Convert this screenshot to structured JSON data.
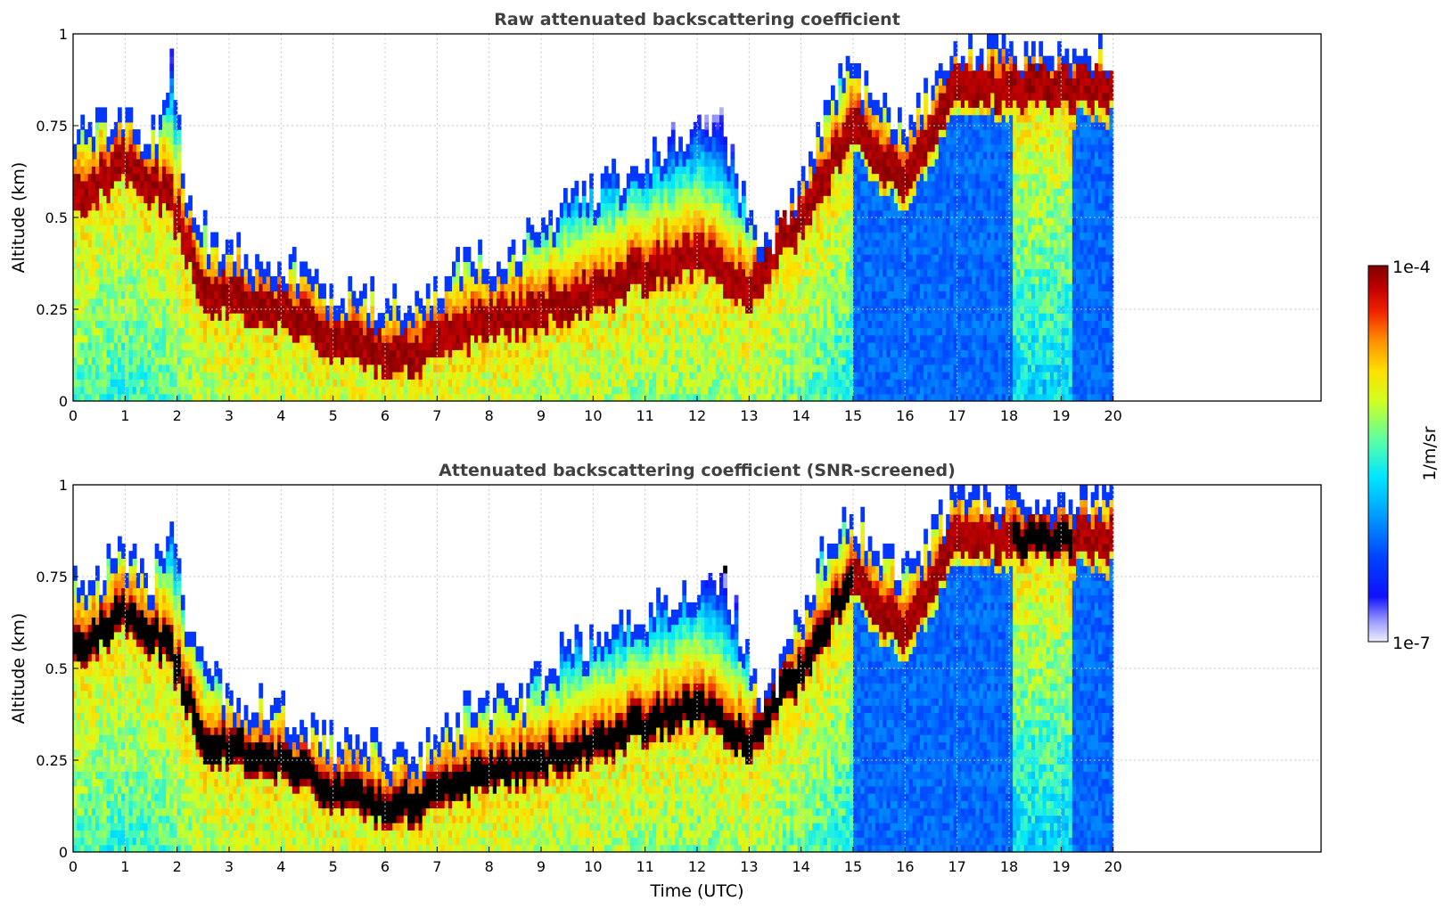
{
  "chart_data": [
    {
      "type": "heatmap",
      "title": "Raw attenuated backscattering coefficient",
      "xlabel": "",
      "ylabel": "Altitude (km)",
      "xlim": [
        0,
        24
      ],
      "ylim": [
        0,
        1
      ],
      "xticks": [
        "0",
        "1",
        "2",
        "3",
        "4",
        "5",
        "6",
        "7",
        "8",
        "9",
        "10",
        "11",
        "12",
        "13",
        "14",
        "15",
        "16",
        "17",
        "18",
        "19",
        "20"
      ],
      "yticks": [
        "0",
        "0.25",
        "0.5",
        "0.75",
        "1"
      ],
      "grid": true,
      "data_extent_hours": [
        0,
        20
      ],
      "layer_top_km": [
        {
          "x": 0,
          "y": 0.74
        },
        {
          "x": 0.5,
          "y": 0.75
        },
        {
          "x": 1,
          "y": 0.78
        },
        {
          "x": 1.5,
          "y": 0.7
        },
        {
          "x": 1.9,
          "y": 0.9
        },
        {
          "x": 2.2,
          "y": 0.55
        },
        {
          "x": 2.6,
          "y": 0.45
        },
        {
          "x": 3,
          "y": 0.42
        },
        {
          "x": 4,
          "y": 0.38
        },
        {
          "x": 5,
          "y": 0.3
        },
        {
          "x": 6,
          "y": 0.27
        },
        {
          "x": 6.8,
          "y": 0.27
        },
        {
          "x": 7.5,
          "y": 0.38
        },
        {
          "x": 8.5,
          "y": 0.4
        },
        {
          "x": 9.5,
          "y": 0.55
        },
        {
          "x": 10.5,
          "y": 0.6
        },
        {
          "x": 11.5,
          "y": 0.7
        },
        {
          "x": 12.5,
          "y": 0.75
        },
        {
          "x": 13.3,
          "y": 0.4
        },
        {
          "x": 14,
          "y": 0.6
        },
        {
          "x": 14.8,
          "y": 0.9
        },
        {
          "x": 16,
          "y": 0.75
        },
        {
          "x": 17,
          "y": 0.95
        },
        {
          "x": 18,
          "y": 0.95
        },
        {
          "x": 19,
          "y": 0.95
        },
        {
          "x": 20,
          "y": 0.95
        }
      ],
      "peak_layer_km": [
        {
          "x": 0,
          "y": 0.55
        },
        {
          "x": 1,
          "y": 0.65
        },
        {
          "x": 1.9,
          "y": 0.55
        },
        {
          "x": 2.5,
          "y": 0.3
        },
        {
          "x": 4,
          "y": 0.25
        },
        {
          "x": 5,
          "y": 0.17
        },
        {
          "x": 6,
          "y": 0.13
        },
        {
          "x": 7,
          "y": 0.15
        },
        {
          "x": 8,
          "y": 0.22
        },
        {
          "x": 9,
          "y": 0.25
        },
        {
          "x": 10,
          "y": 0.3
        },
        {
          "x": 11,
          "y": 0.35
        },
        {
          "x": 12,
          "y": 0.4
        },
        {
          "x": 13,
          "y": 0.3
        },
        {
          "x": 14,
          "y": 0.5
        },
        {
          "x": 15,
          "y": 0.75
        },
        {
          "x": 16,
          "y": 0.6
        },
        {
          "x": 17,
          "y": 0.87
        },
        {
          "x": 18,
          "y": 0.85
        },
        {
          "x": 19,
          "y": 0.85
        }
      ]
    },
    {
      "type": "heatmap",
      "title": "Attenuated backscattering coefficient (SNR-screened)",
      "xlabel": "Time (UTC)",
      "ylabel": "Altitude (km)",
      "xlim": [
        0,
        24
      ],
      "ylim": [
        0,
        1
      ],
      "xticks": [
        "0",
        "1",
        "2",
        "3",
        "4",
        "5",
        "6",
        "7",
        "8",
        "9",
        "10",
        "11",
        "12",
        "13",
        "14",
        "15",
        "16",
        "17",
        "18",
        "19",
        "20"
      ],
      "yticks": [
        "0",
        "0.25",
        "0.5",
        "0.75",
        "1"
      ],
      "grid": true,
      "data_extent_hours": [
        0,
        20
      ],
      "layer_top_km": [
        {
          "x": 0,
          "y": 0.74
        },
        {
          "x": 0.5,
          "y": 0.76
        },
        {
          "x": 1,
          "y": 0.82
        },
        {
          "x": 1.5,
          "y": 0.72
        },
        {
          "x": 1.9,
          "y": 0.93
        },
        {
          "x": 2.2,
          "y": 0.6
        },
        {
          "x": 2.6,
          "y": 0.48
        },
        {
          "x": 3,
          "y": 0.43
        },
        {
          "x": 4,
          "y": 0.38
        },
        {
          "x": 5,
          "y": 0.3
        },
        {
          "x": 6,
          "y": 0.28
        },
        {
          "x": 6.8,
          "y": 0.28
        },
        {
          "x": 7.5,
          "y": 0.38
        },
        {
          "x": 8.5,
          "y": 0.42
        },
        {
          "x": 9.5,
          "y": 0.55
        },
        {
          "x": 10.5,
          "y": 0.6
        },
        {
          "x": 11.5,
          "y": 0.7
        },
        {
          "x": 12.5,
          "y": 0.75
        },
        {
          "x": 13.3,
          "y": 0.4
        },
        {
          "x": 14,
          "y": 0.65
        },
        {
          "x": 14.8,
          "y": 0.95
        },
        {
          "x": 16,
          "y": 0.75
        },
        {
          "x": 17,
          "y": 0.97
        },
        {
          "x": 18,
          "y": 0.97
        },
        {
          "x": 19,
          "y": 0.97
        },
        {
          "x": 20,
          "y": 0.97
        }
      ],
      "peak_layer_km": [
        {
          "x": 0,
          "y": 0.55
        },
        {
          "x": 1,
          "y": 0.65
        },
        {
          "x": 1.9,
          "y": 0.55
        },
        {
          "x": 2.5,
          "y": 0.3
        },
        {
          "x": 4,
          "y": 0.25
        },
        {
          "x": 5,
          "y": 0.17
        },
        {
          "x": 6,
          "y": 0.13
        },
        {
          "x": 7,
          "y": 0.15
        },
        {
          "x": 8,
          "y": 0.22
        },
        {
          "x": 9,
          "y": 0.25
        },
        {
          "x": 10,
          "y": 0.3
        },
        {
          "x": 11,
          "y": 0.35
        },
        {
          "x": 12,
          "y": 0.4
        },
        {
          "x": 13,
          "y": 0.3
        },
        {
          "x": 14,
          "y": 0.5
        },
        {
          "x": 15,
          "y": 0.75
        },
        {
          "x": 16,
          "y": 0.6
        },
        {
          "x": 17,
          "y": 0.87
        },
        {
          "x": 18,
          "y": 0.85
        },
        {
          "x": 19,
          "y": 0.85
        }
      ]
    }
  ],
  "colorbar": {
    "label": "1/m/sr",
    "max_label": "1e-4",
    "min_label": "1e-7",
    "scale": "log",
    "colors": [
      "#f0f0ff",
      "#c8c8ff",
      "#9090ff",
      "#5050ff",
      "#0000ff",
      "#0050ff",
      "#00a0ff",
      "#00e0ff",
      "#40ffb0",
      "#a0ff40",
      "#ffff00",
      "#ffb000",
      "#ff5000",
      "#e00000",
      "#8b0000"
    ]
  }
}
